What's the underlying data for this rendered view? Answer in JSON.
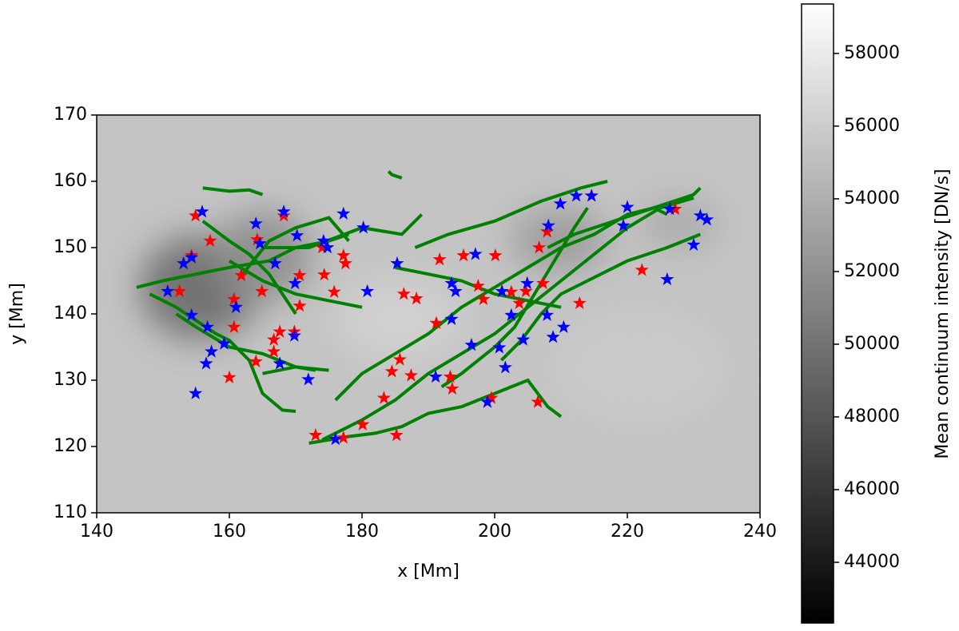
{
  "chart_data": {
    "type": "scatter",
    "xlabel": "x [Mm]",
    "ylabel": "y [Mm]",
    "xlim": [
      140,
      240
    ],
    "ylim": [
      110,
      170
    ],
    "xticks": [
      140,
      160,
      180,
      200,
      220,
      240
    ],
    "yticks": [
      110,
      120,
      130,
      140,
      150,
      160,
      170
    ],
    "marker": "star",
    "series": [
      {
        "color": "#ff0000",
        "x": [
          157.1,
          154.9,
          160.0,
          164.0,
          166.7,
          166.7,
          170.6,
          170.6,
          174.3,
          175.8,
          177.2,
          177.5,
          174.0,
          173.0,
          177.2,
          180.1,
          183.3,
          185.2,
          184.5,
          185.7,
          187.4,
          186.3,
          188.2,
          191.2,
          193.3,
          193.6,
          191.7,
          195.3,
          197.5,
          198.3,
          200.1,
          199.5,
          202.5,
          203.7,
          204.7,
          206.7,
          207.3,
          207.9,
          212.8,
          214.6,
          222.2,
          227.2,
          206.5,
          154.3,
          160.7,
          160.7,
          161.8,
          164.9,
          167.6,
          169.8,
          168.2,
          164.2,
          152.5
        ],
        "y": [
          151.0,
          154.8,
          130.4,
          132.8,
          134.3,
          136.1,
          145.8,
          141.2,
          145.9,
          143.3,
          148.8,
          147.6,
          150.0,
          121.7,
          121.3,
          123.3,
          127.3,
          121.7,
          131.3,
          133.1,
          130.7,
          143.0,
          142.3,
          138.6,
          130.5,
          128.7,
          148.2,
          148.8,
          144.2,
          142.2,
          148.8,
          127.3,
          143.3,
          141.6,
          143.4,
          150.0,
          144.6,
          152.4,
          141.6,
          157.8,
          146.6,
          155.8,
          126.7,
          148.8,
          138.0,
          142.2,
          145.8,
          143.4,
          137.3,
          137.3,
          154.8,
          151.2,
          143.4
        ]
      },
      {
        "color": "#0000ff",
        "x": [
          154.9,
          155.9,
          156.5,
          157.3,
          154.3,
          153.1,
          150.7,
          154.3,
          156.7,
          159.2,
          161.0,
          164.0,
          164.6,
          168.2,
          166.9,
          169.9,
          170.2,
          167.6,
          169.8,
          171.9,
          174.8,
          177.2,
          180.2,
          180.8,
          185.3,
          176.0,
          191.1,
          193.5,
          193.5,
          194.1,
          196.5,
          197.1,
          198.9,
          200.7,
          201.1,
          201.6,
          202.5,
          204.3,
          204.9,
          207.9,
          208.8,
          210.4,
          208.1,
          209.9,
          212.3,
          214.6,
          219.4,
          220.0,
          226.0,
          226.4,
          230.0,
          231.0,
          232.0,
          174.2
        ],
        "y": [
          128.0,
          155.4,
          132.5,
          134.3,
          148.5,
          147.6,
          143.4,
          139.8,
          138.0,
          135.5,
          141.0,
          153.6,
          150.6,
          155.4,
          147.6,
          144.6,
          151.8,
          132.5,
          136.7,
          130.1,
          150.0,
          155.1,
          153.0,
          143.4,
          147.6,
          121.1,
          130.5,
          144.6,
          139.2,
          143.4,
          135.3,
          149.0,
          126.7,
          134.9,
          143.4,
          131.9,
          139.8,
          136.1,
          144.6,
          139.8,
          136.5,
          138.0,
          153.3,
          156.6,
          157.8,
          157.8,
          153.3,
          156.1,
          145.2,
          155.8,
          150.4,
          154.8,
          154.2,
          151.0
        ]
      }
    ],
    "tracks": {
      "color": "#008000",
      "lines": [
        {
          "x": [
            156,
            160,
            163,
            165
          ],
          "y": [
            159,
            158.5,
            158.7,
            158
          ]
        },
        {
          "x": [
            146,
            150,
            155,
            160,
            166,
            170,
            175,
            178
          ],
          "y": [
            144,
            145,
            146,
            147,
            148,
            150,
            151,
            152
          ]
        },
        {
          "x": [
            148,
            152,
            155,
            158,
            160,
            163,
            165,
            168,
            170
          ],
          "y": [
            143,
            141,
            139,
            137,
            136,
            133,
            128,
            125.5,
            125.3
          ]
        },
        {
          "x": [
            152,
            155,
            160,
            165,
            170,
            175
          ],
          "y": [
            140,
            138,
            135,
            134,
            132,
            131.5
          ]
        },
        {
          "x": [
            160,
            165,
            170,
            175,
            180
          ],
          "y": [
            148,
            145,
            143,
            142,
            141
          ]
        },
        {
          "x": [
            162,
            166,
            170,
            175,
            178
          ],
          "y": [
            146,
            151,
            153,
            154.5,
            151
          ]
        },
        {
          "x": [
            165,
            172,
            180,
            186,
            189
          ],
          "y": [
            150,
            150,
            153,
            152,
            155
          ]
        },
        {
          "x": [
            184,
            184.5,
            186
          ],
          "y": [
            161.5,
            161,
            160.5
          ]
        },
        {
          "x": [
            174,
            180,
            185,
            190,
            195,
            200,
            205,
            210,
            215,
            220,
            225,
            230
          ],
          "y": [
            121,
            124,
            127,
            131,
            134,
            137,
            141,
            145,
            149,
            153,
            156,
            157.5
          ]
        },
        {
          "x": [
            172,
            175,
            178,
            182,
            186,
            190,
            195,
            200,
            205,
            208,
            210
          ],
          "y": [
            120.5,
            121,
            121.5,
            122,
            123,
            125,
            126,
            128,
            130,
            126,
            124.5
          ]
        },
        {
          "x": [
            176,
            180,
            185,
            190,
            195,
            200,
            205,
            210,
            215,
            220,
            224,
            226
          ],
          "y": [
            127,
            131,
            134,
            137,
            141,
            144,
            147,
            150,
            152,
            155,
            156,
            155
          ]
        },
        {
          "x": [
            185,
            190,
            195,
            200,
            205,
            210
          ],
          "y": [
            147,
            146,
            145,
            143,
            142,
            141
          ]
        },
        {
          "x": [
            188,
            193,
            200,
            207,
            213,
            217
          ],
          "y": [
            150,
            152,
            154,
            157,
            159,
            160
          ]
        },
        {
          "x": [
            208,
            212,
            218,
            224,
            230,
            231
          ],
          "y": [
            150,
            152,
            154,
            156,
            158,
            159
          ]
        },
        {
          "x": [
            201,
            204,
            207,
            210,
            214,
            220,
            226,
            231
          ],
          "y": [
            133,
            136,
            140,
            143,
            145,
            148,
            150,
            152
          ]
        },
        {
          "x": [
            192,
            195,
            200,
            203,
            206,
            209,
            212,
            214
          ],
          "y": [
            129,
            131,
            135,
            138,
            143,
            148,
            153,
            156
          ]
        },
        {
          "x": [
            165,
            170,
            173
          ],
          "y": [
            131,
            132,
            131.5
          ]
        },
        {
          "x": [
            156,
            160,
            163,
            166,
            168,
            170
          ],
          "y": [
            154,
            151,
            149,
            146,
            143,
            140
          ]
        }
      ]
    },
    "colorbar": {
      "label": "Mean continuum intensity [DN/s]",
      "cmap": "gray",
      "clim": [
        42330,
        59360
      ],
      "ticks": [
        44000,
        46000,
        48000,
        50000,
        52000,
        54000,
        56000,
        58000
      ]
    }
  }
}
